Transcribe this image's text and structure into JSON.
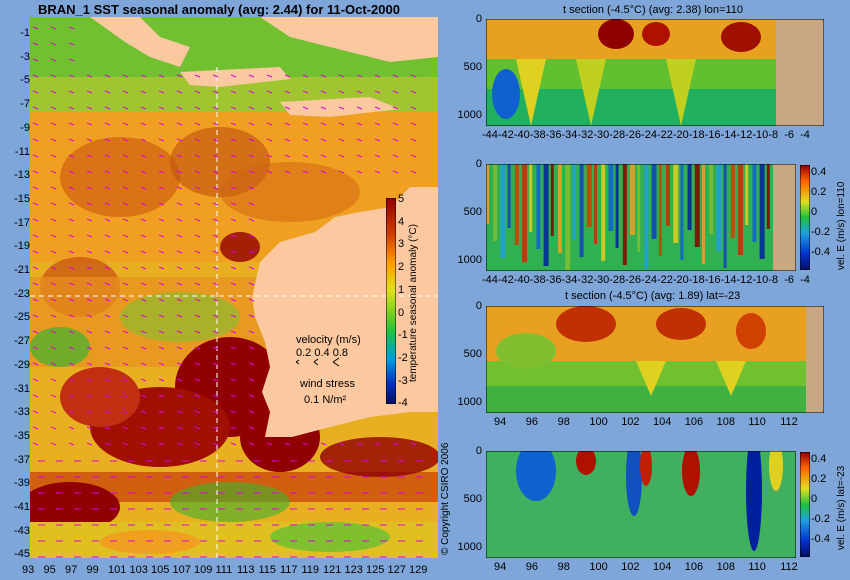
{
  "map": {
    "title": "BRAN_1  SST seasonal anomaly (avg: 2.44) for 11-Oct-2000",
    "lat_ticks": [
      "-1",
      "-3",
      "-5",
      "-7",
      "-9",
      "-11",
      "-13",
      "-15",
      "-17",
      "-19",
      "-21",
      "-23",
      "-25",
      "-27",
      "-29",
      "-31",
      "-33",
      "-35",
      "-37",
      "-39",
      "-41",
      "-43",
      "-45"
    ],
    "lon_ticks": [
      "93",
      "95",
      "97",
      "99",
      "101",
      "103",
      "105",
      "107",
      "109",
      "111",
      "113",
      "115",
      "117",
      "119",
      "121",
      "123",
      "125",
      "127",
      "129"
    ],
    "colorbar_ticks": [
      "5",
      "4",
      "3",
      "2",
      "1",
      "0",
      "-1",
      "-2",
      "-3",
      "-4"
    ],
    "colorbar_label": "temperature seasonal anomaly (°C)",
    "velocity_label": "velocity (m/s)",
    "velocity_scale": "0.2 0.4 0.8",
    "wind_label": "wind stress",
    "wind_scale": "0.1 N/m²",
    "copyright": "© Copyright CSIRO 2006"
  },
  "panels": [
    {
      "title": "t section (-4.5°C) (avg: 2.38) lon=110",
      "x_ticks": [
        "-44",
        "-42",
        "-40",
        "-38",
        "-36",
        "-34",
        "-32",
        "-30",
        "-28",
        "-26",
        "-24",
        "-22",
        "-20",
        "-18",
        "-16",
        "-14",
        "-12",
        "-10",
        "-8",
        "-6",
        "-4"
      ],
      "y_ticks": [
        "0",
        "500",
        "1000"
      ],
      "colorbar": false
    },
    {
      "title": "",
      "x_ticks": [
        "-44",
        "-42",
        "-40",
        "-38",
        "-36",
        "-34",
        "-32",
        "-30",
        "-28",
        "-26",
        "-24",
        "-22",
        "-20",
        "-18",
        "-16",
        "-14",
        "-12",
        "-10",
        "-8",
        "-6",
        "-4"
      ],
      "y_ticks": [
        "0",
        "500",
        "1000"
      ],
      "colorbar": true,
      "cb_ticks": [
        "0.4",
        "0.2",
        "0",
        "-0.2",
        "-0.4"
      ],
      "cb_label": "vel. E (m/s) lon=110"
    },
    {
      "title": "t section (-4.5°C) (avg: 1.89) lat=-23",
      "x_ticks": [
        "94",
        "96",
        "98",
        "100",
        "102",
        "104",
        "106",
        "108",
        "110",
        "112"
      ],
      "y_ticks": [
        "0",
        "500",
        "1000"
      ],
      "colorbar": false
    },
    {
      "title": "",
      "x_ticks": [
        "94",
        "96",
        "98",
        "100",
        "102",
        "104",
        "106",
        "108",
        "110",
        "112"
      ],
      "y_ticks": [
        "0",
        "500",
        "1000"
      ],
      "colorbar": true,
      "cb_ticks": [
        "0.4",
        "0.2",
        "0",
        "-0.2",
        "-0.4"
      ],
      "cb_label": "vel. E (m/s) lat=-23"
    }
  ],
  "chart_data": [
    {
      "type": "heatmap",
      "title": "BRAN_1  SST seasonal anomaly (avg: 2.44) for 11-Oct-2000",
      "x_axis": "longitude",
      "xlim": [
        93,
        130
      ],
      "y_axis": "latitude",
      "ylim": [
        -45,
        0
      ],
      "color_range": [
        -4,
        5
      ],
      "color_label": "temperature seasonal anomaly (°C)",
      "avg": 2.44
    },
    {
      "type": "heatmap",
      "title": "t section (-4.5°C) (avg: 2.38) lon=110",
      "x_axis": "latitude",
      "xlim": [
        -45,
        -3
      ],
      "y_axis": "depth",
      "ylim": [
        1050,
        0
      ],
      "avg": 2.38
    },
    {
      "type": "heatmap",
      "title": "",
      "x_axis": "latitude",
      "xlim": [
        -45,
        -3
      ],
      "y_axis": "depth",
      "ylim": [
        1050,
        0
      ],
      "color_range": [
        -0.4,
        0.4
      ],
      "color_label": "vel. E (m/s) lon=110"
    },
    {
      "type": "heatmap",
      "title": "t section (-4.5°C) (avg: 1.89) lat=-23",
      "x_axis": "longitude",
      "xlim": [
        93,
        114
      ],
      "y_axis": "depth",
      "ylim": [
        1050,
        0
      ],
      "avg": 1.89
    },
    {
      "type": "heatmap",
      "title": "",
      "x_axis": "longitude",
      "xlim": [
        93,
        114
      ],
      "y_axis": "depth",
      "ylim": [
        1050,
        0
      ],
      "color_range": [
        -0.4,
        0.4
      ],
      "color_label": "vel. E (m/s) lat=-23"
    }
  ]
}
